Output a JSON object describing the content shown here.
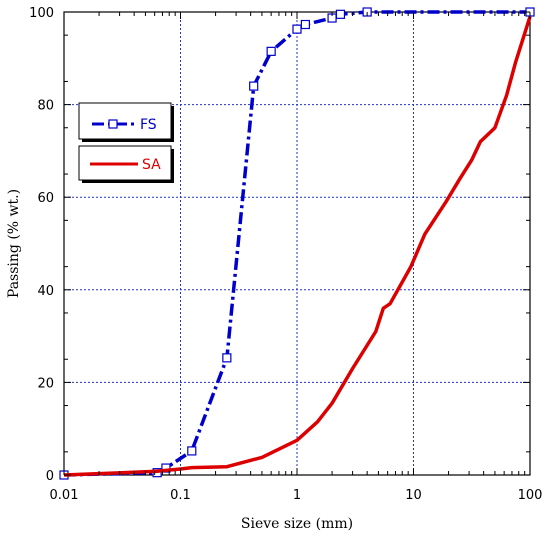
{
  "chart_data": {
    "type": "line",
    "xlabel": "Sieve size (mm)",
    "ylabel": "Passing (% wt.)",
    "xscale": "log",
    "xlim": [
      0.01,
      100
    ],
    "ylim": [
      0,
      100
    ],
    "xticks": [
      0.01,
      0.1,
      1,
      10,
      100
    ],
    "xtick_labels": [
      "0.01",
      "0.1",
      "1",
      "10",
      "100"
    ],
    "yticks": [
      0,
      20,
      40,
      60,
      80,
      100
    ],
    "ytick_labels": [
      "0",
      "20",
      "40",
      "60",
      "80",
      "100"
    ],
    "grid": true,
    "legend_position": "upper-left",
    "series": [
      {
        "name": "FS",
        "color": "#0000cc",
        "style": "dash-dot",
        "marker": "square",
        "x": [
          0.01,
          0.063,
          0.075,
          0.125,
          0.25,
          0.425,
          0.6,
          1.0,
          1.18,
          2.0,
          2.36,
          4.0,
          100
        ],
        "y": [
          0,
          0.5,
          1.5,
          5.2,
          25.3,
          84.0,
          91.5,
          96.3,
          97.3,
          98.7,
          99.5,
          100,
          100
        ]
      },
      {
        "name": "SA",
        "color": "#dd0000",
        "style": "solid",
        "marker": "none",
        "x": [
          0.01,
          0.063,
          0.075,
          0.1,
          0.125,
          0.25,
          0.5,
          1.0,
          1.5,
          2.0,
          3.0,
          4.75,
          5.5,
          6.3,
          9.5,
          12.5,
          19.0,
          25.0,
          31.5,
          37.5,
          50.0,
          63.0,
          75.0,
          100
        ],
        "y": [
          0,
          0.8,
          1.0,
          1.3,
          1.6,
          1.8,
          3.8,
          7.5,
          11.5,
          15.5,
          23.0,
          31.0,
          36.0,
          37.0,
          45.0,
          52.0,
          59.0,
          64.0,
          68.0,
          72.0,
          75.0,
          82.0,
          89.0,
          99.0
        ]
      }
    ]
  }
}
